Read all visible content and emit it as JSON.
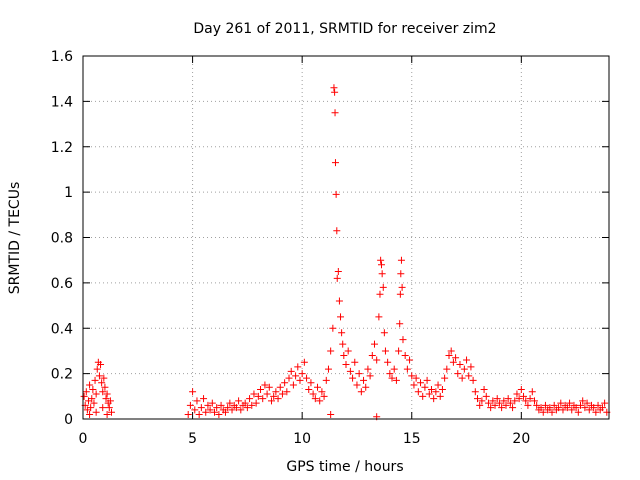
{
  "chart_data": {
    "type": "scatter",
    "title": "Day 261 of 2011, SRMTID for receiver zim2",
    "xlabel": "GPS time / hours",
    "ylabel": "SRMTID / TECUs",
    "xlim": [
      0,
      24
    ],
    "ylim": [
      0,
      1.6
    ],
    "x_ticks": [
      0,
      5,
      10,
      15,
      20
    ],
    "x_tick_labels": [
      "0",
      "5",
      "10",
      "15",
      "20"
    ],
    "y_ticks": [
      0,
      0.2,
      0.4,
      0.6,
      0.8,
      1.0,
      1.2,
      1.4,
      1.6
    ],
    "y_tick_labels": [
      "0",
      "0.2",
      "0.4",
      "0.6",
      "0.8",
      "1",
      "1.2",
      "1.4",
      "1.6"
    ],
    "grid": true,
    "marker": "+",
    "marker_color": "#ff0000",
    "series": [
      {
        "name": "SRMTID",
        "points": [
          [
            0.05,
            0.1
          ],
          [
            0.1,
            0.06
          ],
          [
            0.15,
            0.12
          ],
          [
            0.2,
            0.04
          ],
          [
            0.25,
            0.08
          ],
          [
            0.3,
            0.15
          ],
          [
            0.35,
            0.05
          ],
          [
            0.4,
            0.09
          ],
          [
            0.45,
            0.13
          ],
          [
            0.5,
            0.07
          ],
          [
            0.55,
            0.17
          ],
          [
            0.6,
            0.11
          ],
          [
            0.65,
            0.22
          ],
          [
            0.7,
            0.25
          ],
          [
            0.75,
            0.19
          ],
          [
            0.8,
            0.24
          ],
          [
            0.85,
            0.16
          ],
          [
            0.9,
            0.12
          ],
          [
            0.95,
            0.18
          ],
          [
            1.0,
            0.14
          ],
          [
            1.05,
            0.09
          ],
          [
            1.1,
            0.11
          ],
          [
            1.15,
            0.07
          ],
          [
            1.2,
            0.05
          ],
          [
            1.25,
            0.08
          ],
          [
            1.3,
            0.03
          ],
          [
            0.3,
            0.02
          ],
          [
            0.6,
            0.03
          ],
          [
            0.9,
            0.05
          ],
          [
            1.1,
            0.02
          ],
          [
            4.8,
            0.02
          ],
          [
            4.9,
            0.06
          ],
          [
            5.0,
            0.12
          ],
          [
            5.1,
            0.04
          ],
          [
            5.2,
            0.08
          ],
          [
            5.3,
            0.02
          ],
          [
            5.4,
            0.05
          ],
          [
            5.5,
            0.09
          ],
          [
            5.6,
            0.03
          ],
          [
            5.7,
            0.06
          ],
          [
            5.8,
            0.04
          ],
          [
            5.9,
            0.07
          ],
          [
            6.0,
            0.03
          ],
          [
            6.1,
            0.05
          ],
          [
            6.2,
            0.02
          ],
          [
            6.3,
            0.06
          ],
          [
            6.4,
            0.04
          ],
          [
            6.5,
            0.03
          ],
          [
            6.6,
            0.05
          ],
          [
            6.7,
            0.07
          ],
          [
            6.8,
            0.04
          ],
          [
            6.9,
            0.06
          ],
          [
            7.0,
            0.05
          ],
          [
            7.1,
            0.08
          ],
          [
            7.2,
            0.04
          ],
          [
            7.3,
            0.06
          ],
          [
            7.4,
            0.07
          ],
          [
            7.5,
            0.05
          ],
          [
            7.6,
            0.09
          ],
          [
            7.7,
            0.06
          ],
          [
            7.8,
            0.11
          ],
          [
            7.9,
            0.07
          ],
          [
            8.0,
            0.1
          ],
          [
            8.1,
            0.13
          ],
          [
            8.2,
            0.09
          ],
          [
            8.3,
            0.15
          ],
          [
            8.4,
            0.11
          ],
          [
            8.5,
            0.14
          ],
          [
            8.6,
            0.08
          ],
          [
            8.7,
            0.1
          ],
          [
            8.8,
            0.12
          ],
          [
            8.9,
            0.09
          ],
          [
            9.0,
            0.14
          ],
          [
            9.1,
            0.11
          ],
          [
            9.2,
            0.16
          ],
          [
            9.3,
            0.12
          ],
          [
            9.4,
            0.18
          ],
          [
            9.5,
            0.21
          ],
          [
            9.6,
            0.15
          ],
          [
            9.7,
            0.19
          ],
          [
            9.8,
            0.23
          ],
          [
            9.9,
            0.17
          ],
          [
            10.0,
            0.2
          ],
          [
            10.1,
            0.25
          ],
          [
            10.2,
            0.18
          ],
          [
            10.3,
            0.13
          ],
          [
            10.4,
            0.16
          ],
          [
            10.5,
            0.11
          ],
          [
            10.6,
            0.09
          ],
          [
            10.7,
            0.14
          ],
          [
            10.8,
            0.08
          ],
          [
            10.9,
            0.12
          ],
          [
            11.0,
            0.1
          ],
          [
            11.1,
            0.17
          ],
          [
            11.2,
            0.22
          ],
          [
            11.3,
            0.3
          ],
          [
            11.4,
            0.4
          ],
          [
            11.45,
            1.46
          ],
          [
            11.48,
            1.44
          ],
          [
            11.5,
            1.35
          ],
          [
            11.52,
            1.13
          ],
          [
            11.55,
            0.99
          ],
          [
            11.58,
            0.83
          ],
          [
            11.6,
            0.62
          ],
          [
            11.65,
            0.65
          ],
          [
            11.7,
            0.52
          ],
          [
            11.75,
            0.45
          ],
          [
            11.8,
            0.38
          ],
          [
            11.85,
            0.33
          ],
          [
            11.9,
            0.28
          ],
          [
            12.0,
            0.24
          ],
          [
            12.1,
            0.3
          ],
          [
            12.2,
            0.21
          ],
          [
            12.3,
            0.18
          ],
          [
            12.4,
            0.25
          ],
          [
            12.5,
            0.15
          ],
          [
            12.6,
            0.2
          ],
          [
            12.7,
            0.12
          ],
          [
            12.8,
            0.17
          ],
          [
            12.9,
            0.14
          ],
          [
            13.0,
            0.22
          ],
          [
            13.1,
            0.19
          ],
          [
            13.2,
            0.28
          ],
          [
            13.3,
            0.33
          ],
          [
            13.4,
            0.26
          ],
          [
            13.5,
            0.45
          ],
          [
            13.55,
            0.55
          ],
          [
            13.58,
            0.7
          ],
          [
            13.62,
            0.68
          ],
          [
            13.65,
            0.64
          ],
          [
            13.7,
            0.58
          ],
          [
            13.75,
            0.38
          ],
          [
            13.8,
            0.3
          ],
          [
            13.9,
            0.25
          ],
          [
            14.0,
            0.2
          ],
          [
            14.1,
            0.18
          ],
          [
            14.2,
            0.22
          ],
          [
            14.3,
            0.17
          ],
          [
            14.4,
            0.3
          ],
          [
            14.45,
            0.42
          ],
          [
            14.48,
            0.55
          ],
          [
            14.5,
            0.64
          ],
          [
            14.53,
            0.7
          ],
          [
            14.56,
            0.58
          ],
          [
            14.6,
            0.35
          ],
          [
            14.7,
            0.28
          ],
          [
            14.8,
            0.22
          ],
          [
            14.9,
            0.26
          ],
          [
            15.0,
            0.19
          ],
          [
            15.1,
            0.15
          ],
          [
            15.2,
            0.18
          ],
          [
            15.3,
            0.12
          ],
          [
            15.4,
            0.16
          ],
          [
            15.5,
            0.1
          ],
          [
            15.6,
            0.14
          ],
          [
            15.7,
            0.17
          ],
          [
            15.8,
            0.11
          ],
          [
            15.9,
            0.13
          ],
          [
            16.0,
            0.09
          ],
          [
            16.1,
            0.12
          ],
          [
            16.2,
            0.15
          ],
          [
            16.3,
            0.1
          ],
          [
            16.4,
            0.13
          ],
          [
            16.5,
            0.18
          ],
          [
            16.6,
            0.22
          ],
          [
            16.7,
            0.28
          ],
          [
            16.8,
            0.3
          ],
          [
            16.9,
            0.25
          ],
          [
            17.0,
            0.27
          ],
          [
            17.1,
            0.2
          ],
          [
            17.2,
            0.24
          ],
          [
            17.3,
            0.18
          ],
          [
            17.4,
            0.22
          ],
          [
            17.5,
            0.26
          ],
          [
            17.6,
            0.19
          ],
          [
            17.7,
            0.23
          ],
          [
            17.8,
            0.17
          ],
          [
            17.9,
            0.12
          ],
          [
            18.0,
            0.09
          ],
          [
            18.1,
            0.06
          ],
          [
            18.2,
            0.08
          ],
          [
            18.3,
            0.13
          ],
          [
            18.4,
            0.1
          ],
          [
            18.5,
            0.07
          ],
          [
            18.6,
            0.05
          ],
          [
            18.7,
            0.08
          ],
          [
            18.8,
            0.06
          ],
          [
            18.9,
            0.09
          ],
          [
            19.0,
            0.07
          ],
          [
            19.1,
            0.05
          ],
          [
            19.2,
            0.08
          ],
          [
            19.3,
            0.06
          ],
          [
            19.4,
            0.09
          ],
          [
            19.5,
            0.07
          ],
          [
            19.6,
            0.05
          ],
          [
            19.7,
            0.08
          ],
          [
            19.8,
            0.11
          ],
          [
            19.9,
            0.09
          ],
          [
            20.0,
            0.13
          ],
          [
            20.1,
            0.1
          ],
          [
            20.2,
            0.08
          ],
          [
            20.3,
            0.06
          ],
          [
            20.4,
            0.09
          ],
          [
            20.5,
            0.12
          ],
          [
            20.6,
            0.08
          ],
          [
            20.7,
            0.06
          ],
          [
            20.8,
            0.04
          ],
          [
            20.9,
            0.05
          ],
          [
            21.0,
            0.03
          ],
          [
            21.1,
            0.06
          ],
          [
            21.2,
            0.04
          ],
          [
            21.3,
            0.05
          ],
          [
            21.4,
            0.03
          ],
          [
            21.5,
            0.06
          ],
          [
            21.6,
            0.04
          ],
          [
            21.7,
            0.05
          ],
          [
            21.8,
            0.07
          ],
          [
            21.9,
            0.04
          ],
          [
            22.0,
            0.06
          ],
          [
            22.1,
            0.05
          ],
          [
            22.2,
            0.07
          ],
          [
            22.3,
            0.04
          ],
          [
            22.4,
            0.06
          ],
          [
            22.5,
            0.05
          ],
          [
            22.6,
            0.03
          ],
          [
            22.7,
            0.06
          ],
          [
            22.8,
            0.08
          ],
          [
            22.9,
            0.05
          ],
          [
            23.0,
            0.07
          ],
          [
            23.1,
            0.04
          ],
          [
            23.2,
            0.06
          ],
          [
            23.3,
            0.05
          ],
          [
            23.4,
            0.03
          ],
          [
            23.5,
            0.06
          ],
          [
            23.6,
            0.04
          ],
          [
            23.7,
            0.05
          ],
          [
            23.8,
            0.07
          ],
          [
            23.9,
            0.03
          ],
          [
            13.4,
            0.01
          ],
          [
            11.3,
            0.02
          ]
        ]
      }
    ]
  }
}
